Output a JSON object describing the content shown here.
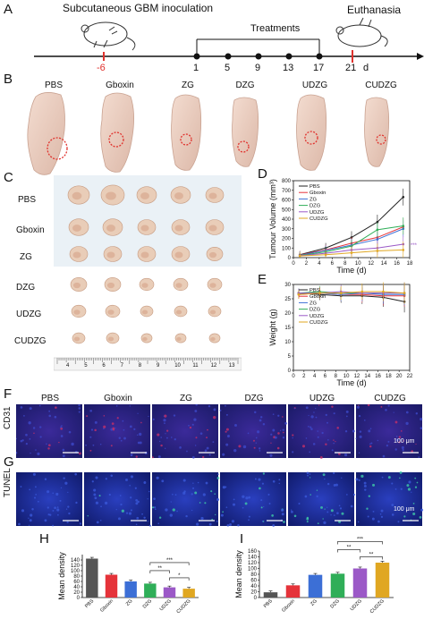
{
  "panel_letters": {
    "a": "A",
    "b": "B",
    "c": "C",
    "d": "D",
    "e": "E",
    "f": "F",
    "g": "G",
    "h": "H",
    "i": "I"
  },
  "timeline": {
    "inoculation_label": "Subcutaneous GBM inoculation",
    "treatments_label": "Treatments",
    "euthanasia_label": "Euthanasia",
    "days": [
      "-6",
      "1",
      "5",
      "9",
      "13",
      "17",
      "21"
    ],
    "day_unit": "d",
    "accent_color": "#e0322d"
  },
  "groups": [
    "PBS",
    "Gboxin",
    "ZG",
    "DZG",
    "UDZG",
    "CUDZG"
  ],
  "tumor_rows": [
    "PBS",
    "Gboxin",
    "ZG",
    "DZG",
    "UDZG",
    "CUDZG"
  ],
  "ruler_numbers": [
    "4",
    "5",
    "6",
    "7",
    "8",
    "9",
    "10",
    "11",
    "12",
    "13"
  ],
  "micro": {
    "rows": [
      "CD31",
      "TUNEL"
    ],
    "scale_bar": "100 μm"
  },
  "chart_data": [
    {
      "id": "D",
      "type": "line",
      "xlabel": "Time (d)",
      "ylabel": "Tumour Volume (mm³)",
      "xlim": [
        0,
        18
      ],
      "ylim": [
        0,
        800
      ],
      "xticks": [
        "0",
        "2",
        "4",
        "6",
        "8",
        "10",
        "12",
        "14",
        "16",
        "18"
      ],
      "yticks": [
        "0",
        "100",
        "200",
        "300",
        "400",
        "500",
        "600",
        "700",
        "800"
      ],
      "annotation": "***",
      "x": [
        1,
        5,
        9,
        13,
        17
      ],
      "series": [
        {
          "name": "PBS",
          "color": "#222222",
          "values": [
            30,
            100,
            210,
            370,
            630
          ]
        },
        {
          "name": "Gboxin",
          "color": "#e5333a",
          "values": [
            28,
            80,
            150,
            210,
            320
          ]
        },
        {
          "name": "ZG",
          "color": "#3c6fd6",
          "values": [
            25,
            75,
            130,
            190,
            300
          ]
        },
        {
          "name": "DZG",
          "color": "#2fae58",
          "values": [
            22,
            60,
            120,
            290,
            330
          ]
        },
        {
          "name": "UDZG",
          "color": "#9b59c7",
          "values": [
            20,
            45,
            80,
            100,
            140
          ]
        },
        {
          "name": "CUDZG",
          "color": "#e0a722",
          "values": [
            18,
            30,
            50,
            70,
            80
          ]
        }
      ]
    },
    {
      "id": "E",
      "type": "line",
      "xlabel": "Time (d)",
      "ylabel": "Weight (g)",
      "xlim": [
        0,
        22
      ],
      "ylim": [
        0,
        30
      ],
      "xticks": [
        "0",
        "2",
        "4",
        "6",
        "8",
        "10",
        "12",
        "14",
        "16",
        "18",
        "20",
        "22"
      ],
      "yticks": [
        "0",
        "5",
        "10",
        "15",
        "20",
        "25",
        "30"
      ],
      "x": [
        1,
        5,
        9,
        13,
        17,
        21
      ],
      "series": [
        {
          "name": "PBS",
          "color": "#222222",
          "values": [
            27,
            26.5,
            26,
            26,
            25.5,
            24
          ]
        },
        {
          "name": "Gboxin",
          "color": "#e5333a",
          "values": [
            26.5,
            27,
            26.5,
            26.5,
            26,
            26
          ]
        },
        {
          "name": "ZG",
          "color": "#3c6fd6",
          "values": [
            27,
            27,
            26.5,
            27,
            26.5,
            26.5
          ]
        },
        {
          "name": "DZG",
          "color": "#2fae58",
          "values": [
            27,
            27.5,
            27,
            27,
            27,
            27
          ]
        },
        {
          "name": "UDZG",
          "color": "#9b59c7",
          "values": [
            27,
            27,
            27.5,
            27,
            27,
            27
          ]
        },
        {
          "name": "CUDZG",
          "color": "#e0a722",
          "values": [
            26.5,
            27,
            27,
            27.5,
            27.5,
            27
          ]
        }
      ]
    },
    {
      "id": "H",
      "type": "bar",
      "ylabel": "Mean density",
      "categories": [
        "PBS",
        "Gboxin",
        "ZG",
        "DZG",
        "UDZG",
        "CUDZG"
      ],
      "values": [
        145,
        85,
        60,
        52,
        38,
        33
      ],
      "colors": [
        "#555555",
        "#e5333a",
        "#3c6fd6",
        "#2fae58",
        "#9b59c7",
        "#e0a722"
      ],
      "ylim": [
        0,
        160
      ],
      "yticks": [
        "0",
        "20",
        "40",
        "60",
        "80",
        "100",
        "120",
        "140"
      ],
      "significance": [
        "***",
        "**",
        "*"
      ]
    },
    {
      "id": "I",
      "type": "bar",
      "ylabel": "Mean density",
      "categories": [
        "PBS",
        "Gboxin",
        "ZG",
        "DZG",
        "UDZG",
        "CUDZG"
      ],
      "values": [
        18,
        42,
        78,
        82,
        100,
        120
      ],
      "colors": [
        "#555555",
        "#e5333a",
        "#3c6fd6",
        "#2fae58",
        "#9b59c7",
        "#e0a722"
      ],
      "ylim": [
        0,
        160
      ],
      "yticks": [
        "0",
        "20",
        "40",
        "60",
        "80",
        "100",
        "120",
        "140",
        "160"
      ],
      "significance": [
        "***",
        "**",
        "**"
      ]
    }
  ]
}
